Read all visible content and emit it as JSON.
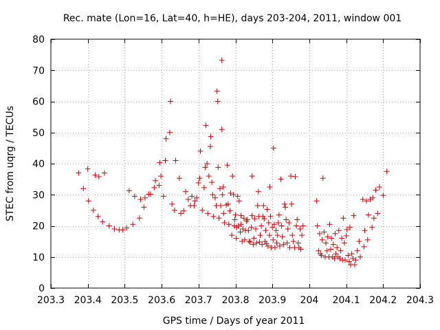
{
  "chart_data": {
    "type": "scatter",
    "title": "Rec. mate (Lon=16, Lat=40, h=HE), days 203-204, 2011, window 001",
    "xlabel": "GPS time / Days of year 2011",
    "ylabel": "STEC from uqrg / TECUs",
    "xlim": [
      203.3,
      204.3
    ],
    "ylim": [
      0,
      80
    ],
    "xticks": [
      203.3,
      203.4,
      203.5,
      203.6,
      203.7,
      203.8,
      203.9,
      204,
      204.1,
      204.2,
      204.3
    ],
    "xtick_labels": [
      "203.3",
      "203.4",
      "203.5",
      "203.6",
      "203.7",
      "203.8",
      "203.9",
      "204",
      "204.1",
      "204.2",
      "204.3"
    ],
    "yticks": [
      0,
      10,
      20,
      30,
      40,
      50,
      60,
      70,
      80
    ],
    "ytick_labels": [
      "0",
      "10",
      "20",
      "30",
      "40",
      "50",
      "60",
      "70",
      "80"
    ],
    "grid": true,
    "marker": "+",
    "color": "#cc0000",
    "points": [
      [
        203.375,
        37
      ],
      [
        203.388,
        32
      ],
      [
        203.4,
        38.3
      ],
      [
        203.402,
        28
      ],
      [
        203.415,
        25
      ],
      [
        203.42,
        36.3
      ],
      [
        203.43,
        35.8
      ],
      [
        203.428,
        23
      ],
      [
        203.44,
        21.3
      ],
      [
        203.445,
        37
      ],
      [
        203.458,
        20
      ],
      [
        203.472,
        19
      ],
      [
        203.485,
        18.7
      ],
      [
        203.495,
        18.7
      ],
      [
        203.505,
        19.3
      ],
      [
        203.512,
        31.3
      ],
      [
        203.522,
        20.5
      ],
      [
        203.527,
        29.5
      ],
      [
        203.54,
        22.5
      ],
      [
        203.543,
        28.5
      ],
      [
        203.552,
        26
      ],
      [
        203.555,
        29
      ],
      [
        203.565,
        30.2
      ],
      [
        203.57,
        30.2
      ],
      [
        203.58,
        32.3
      ],
      [
        203.583,
        34.5
      ],
      [
        203.593,
        33
      ],
      [
        203.595,
        40.3
      ],
      [
        203.598,
        36
      ],
      [
        203.605,
        29.5
      ],
      [
        203.61,
        41
      ],
      [
        203.612,
        48
      ],
      [
        203.622,
        50
      ],
      [
        203.624,
        60
      ],
      [
        203.628,
        27
      ],
      [
        203.635,
        25
      ],
      [
        203.638,
        41
      ],
      [
        203.648,
        35.3
      ],
      [
        203.652,
        24
      ],
      [
        203.66,
        24.8
      ],
      [
        203.665,
        31
      ],
      [
        203.672,
        28.5
      ],
      [
        203.678,
        26.5
      ],
      [
        203.682,
        29.5
      ],
      [
        203.688,
        26.5
      ],
      [
        203.69,
        28
      ],
      [
        203.695,
        29
      ],
      [
        203.7,
        33.8
      ],
      [
        203.703,
        35.3
      ],
      [
        203.705,
        44
      ],
      [
        203.71,
        25
      ],
      [
        203.715,
        32.3
      ],
      [
        203.718,
        38.8
      ],
      [
        203.72,
        52.3
      ],
      [
        203.723,
        40
      ],
      [
        203.725,
        24
      ],
      [
        203.728,
        36
      ],
      [
        203.732,
        45.5
      ],
      [
        203.733,
        48.7
      ],
      [
        203.736,
        34
      ],
      [
        203.738,
        30
      ],
      [
        203.74,
        23
      ],
      [
        203.745,
        29
      ],
      [
        203.748,
        26.5
      ],
      [
        203.75,
        63.3
      ],
      [
        203.752,
        60
      ],
      [
        203.753,
        38.8
      ],
      [
        203.755,
        22.5
      ],
      [
        203.758,
        32
      ],
      [
        203.76,
        26.5
      ],
      [
        203.763,
        51
      ],
      [
        203.765,
        30
      ],
      [
        203.763,
        73.2
      ],
      [
        203.767,
        32.5
      ],
      [
        203.768,
        24
      ],
      [
        203.77,
        21
      ],
      [
        203.775,
        26.7
      ],
      [
        203.778,
        39.5
      ],
      [
        203.78,
        27
      ],
      [
        203.782,
        20.5
      ],
      [
        203.785,
        24.8
      ],
      [
        203.787,
        30.5
      ],
      [
        203.79,
        17
      ],
      [
        203.792,
        36
      ],
      [
        203.795,
        30
      ],
      [
        203.797,
        20
      ],
      [
        203.798,
        22
      ],
      [
        203.8,
        23.5
      ],
      [
        203.802,
        16
      ],
      [
        203.803,
        19.5
      ],
      [
        203.806,
        29.5
      ],
      [
        203.808,
        20
      ],
      [
        203.81,
        28
      ],
      [
        203.813,
        18
      ],
      [
        203.815,
        23.3
      ],
      [
        203.815,
        20.5
      ],
      [
        203.818,
        15
      ],
      [
        203.82,
        19
      ],
      [
        203.823,
        22.5
      ],
      [
        203.825,
        15.5
      ],
      [
        203.827,
        18.5
      ],
      [
        203.83,
        21.5
      ],
      [
        203.832,
        22
      ],
      [
        203.835,
        18.5
      ],
      [
        203.837,
        15
      ],
      [
        203.84,
        14.8
      ],
      [
        203.843,
        19.5
      ],
      [
        203.845,
        23.3
      ],
      [
        203.845,
        36
      ],
      [
        203.848,
        14
      ],
      [
        203.85,
        16
      ],
      [
        203.852,
        22.3
      ],
      [
        203.855,
        19
      ],
      [
        203.857,
        14.5
      ],
      [
        203.86,
        26.5
      ],
      [
        203.862,
        31
      ],
      [
        203.863,
        23
      ],
      [
        203.865,
        14.8
      ],
      [
        203.867,
        17
      ],
      [
        203.87,
        20
      ],
      [
        203.872,
        14
      ],
      [
        203.874,
        23
      ],
      [
        203.876,
        26.5
      ],
      [
        203.878,
        22.3
      ],
      [
        203.88,
        15
      ],
      [
        203.882,
        18.5
      ],
      [
        203.884,
        14.3
      ],
      [
        203.886,
        25.3
      ],
      [
        203.888,
        13.5
      ],
      [
        203.89,
        21
      ],
      [
        203.892,
        17
      ],
      [
        203.893,
        32.5
      ],
      [
        203.895,
        23
      ],
      [
        203.897,
        13
      ],
      [
        203.9,
        19.5
      ],
      [
        203.902,
        15.5
      ],
      [
        203.903,
        45
      ],
      [
        203.905,
        20.5
      ],
      [
        203.907,
        13
      ],
      [
        203.91,
        18.5
      ],
      [
        203.912,
        14.5
      ],
      [
        203.914,
        17
      ],
      [
        203.916,
        21
      ],
      [
        203.918,
        23.5
      ],
      [
        203.92,
        13.5
      ],
      [
        203.923,
        35
      ],
      [
        203.925,
        20
      ],
      [
        203.927,
        16.5
      ],
      [
        203.93,
        14
      ],
      [
        203.933,
        27
      ],
      [
        203.935,
        26
      ],
      [
        203.937,
        22
      ],
      [
        203.94,
        14.5
      ],
      [
        203.942,
        19
      ],
      [
        203.945,
        21
      ],
      [
        203.947,
        13
      ],
      [
        203.95,
        36
      ],
      [
        203.952,
        27
      ],
      [
        203.954,
        17
      ],
      [
        203.957,
        15
      ],
      [
        203.96,
        13
      ],
      [
        203.962,
        35.8
      ],
      [
        203.965,
        20
      ],
      [
        203.967,
        22
      ],
      [
        203.97,
        14.5
      ],
      [
        203.972,
        13
      ],
      [
        203.975,
        19
      ],
      [
        203.977,
        12.5
      ],
      [
        203.98,
        17
      ],
      [
        203.983,
        20
      ],
      [
        204.02,
        28
      ],
      [
        204.022,
        20
      ],
      [
        204.025,
        12
      ],
      [
        204.028,
        17.5
      ],
      [
        204.03,
        11
      ],
      [
        204.033,
        10.5
      ],
      [
        204.035,
        15.5
      ],
      [
        204.037,
        35.3
      ],
      [
        204.04,
        18
      ],
      [
        204.043,
        10
      ],
      [
        204.045,
        14.5
      ],
      [
        204.048,
        12
      ],
      [
        204.05,
        16.5
      ],
      [
        204.053,
        10
      ],
      [
        204.055,
        20.5
      ],
      [
        204.058,
        12.5
      ],
      [
        204.06,
        16
      ],
      [
        204.063,
        10
      ],
      [
        204.065,
        14
      ],
      [
        204.068,
        9.5
      ],
      [
        204.07,
        17.5
      ],
      [
        204.072,
        11
      ],
      [
        204.075,
        13
      ],
      [
        204.078,
        10
      ],
      [
        204.08,
        18.5
      ],
      [
        204.083,
        9.5
      ],
      [
        204.085,
        12
      ],
      [
        204.088,
        16
      ],
      [
        204.09,
        9
      ],
      [
        204.092,
        22.5
      ],
      [
        204.095,
        14.5
      ],
      [
        204.097,
        9
      ],
      [
        204.1,
        16.8
      ],
      [
        204.102,
        18.8
      ],
      [
        204.105,
        10.5
      ],
      [
        204.108,
        8.5
      ],
      [
        204.11,
        19.5
      ],
      [
        204.112,
        7.5
      ],
      [
        204.115,
        11
      ],
      [
        204.118,
        9.5
      ],
      [
        204.12,
        23.3
      ],
      [
        204.123,
        7.5
      ],
      [
        204.126,
        9
      ],
      [
        204.13,
        12
      ],
      [
        204.135,
        15
      ],
      [
        204.138,
        10
      ],
      [
        204.145,
        28.5
      ],
      [
        204.148,
        13.3
      ],
      [
        204.15,
        18.5
      ],
      [
        204.155,
        28
      ],
      [
        204.158,
        15.5
      ],
      [
        204.16,
        23.5
      ],
      [
        204.165,
        28.5
      ],
      [
        204.17,
        19.5
      ],
      [
        204.172,
        29
      ],
      [
        204.175,
        22.5
      ],
      [
        204.18,
        31.5
      ],
      [
        204.185,
        24
      ],
      [
        204.19,
        32.5
      ],
      [
        204.2,
        29.8
      ],
      [
        204.21,
        37.5
      ]
    ]
  }
}
